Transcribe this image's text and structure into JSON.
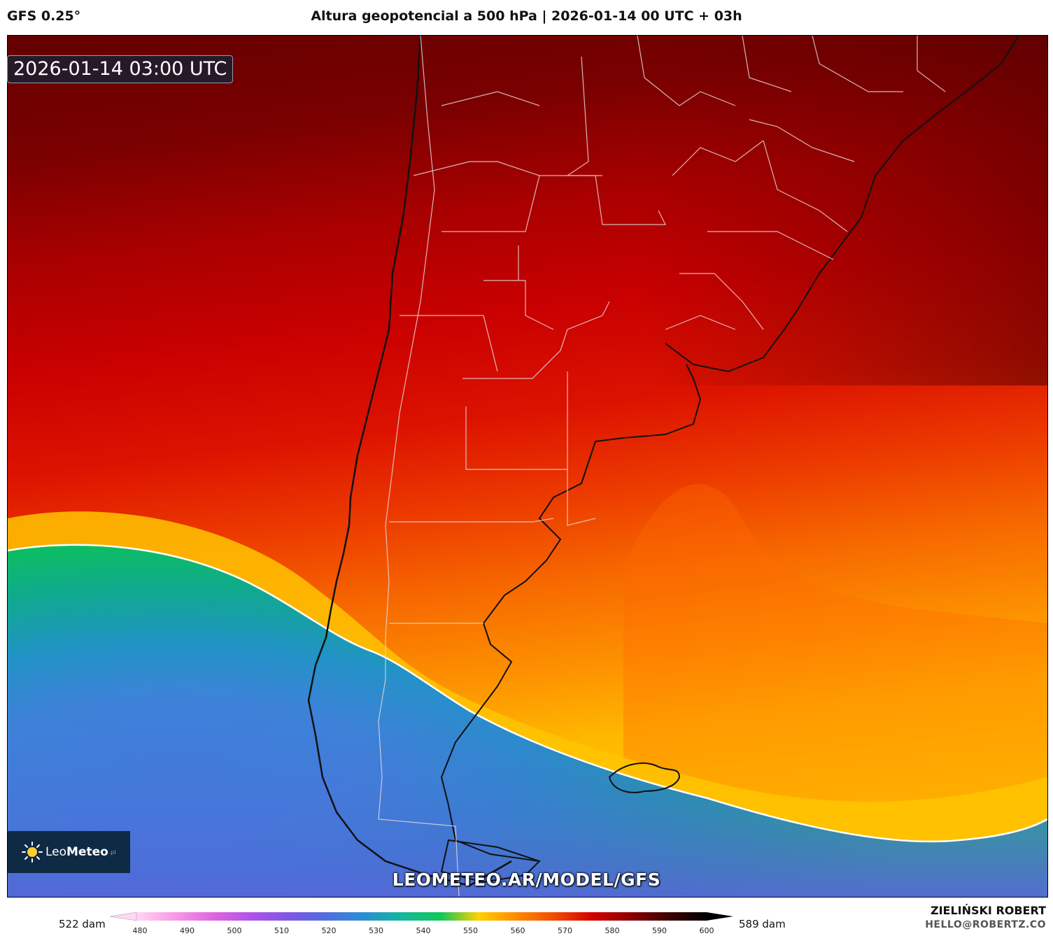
{
  "header": {
    "model": "GFS 0.25°",
    "title": "Altura geopotencial a 500 hPa | 2026-01-14 00 UTC + 03h"
  },
  "map": {
    "valid_time": "2026-01-14 03:00 UTC",
    "field": "500 hPa geopotential height",
    "contour_line_color": "#ffffff"
  },
  "logo": {
    "name_part1": "Leo",
    "name_part2": "Meteo",
    "suffix": ".pl",
    "icon": "sun-icon"
  },
  "watermark": "LEOMETEO.AR/MODEL/GFS",
  "colorbar": {
    "min_label": "522 dam",
    "max_label": "589 dam",
    "ticks": [
      "480",
      "490",
      "500",
      "510",
      "520",
      "530",
      "540",
      "550",
      "560",
      "570",
      "580",
      "590",
      "600"
    ],
    "colors": [
      "#ffd6f5",
      "#f79ae6",
      "#e066e0",
      "#b054e8",
      "#7f56e6",
      "#4f6fdd",
      "#2a8fd2",
      "#14b89a",
      "#10c85a",
      "#ffd000",
      "#ff8a00",
      "#f24a00",
      "#d10000",
      "#8a0000",
      "#3c0000",
      "#000000"
    ]
  },
  "author": {
    "name": "ZIELIŃSKI ROBERT",
    "email": "HELLO@ROBERTZ.CO"
  }
}
